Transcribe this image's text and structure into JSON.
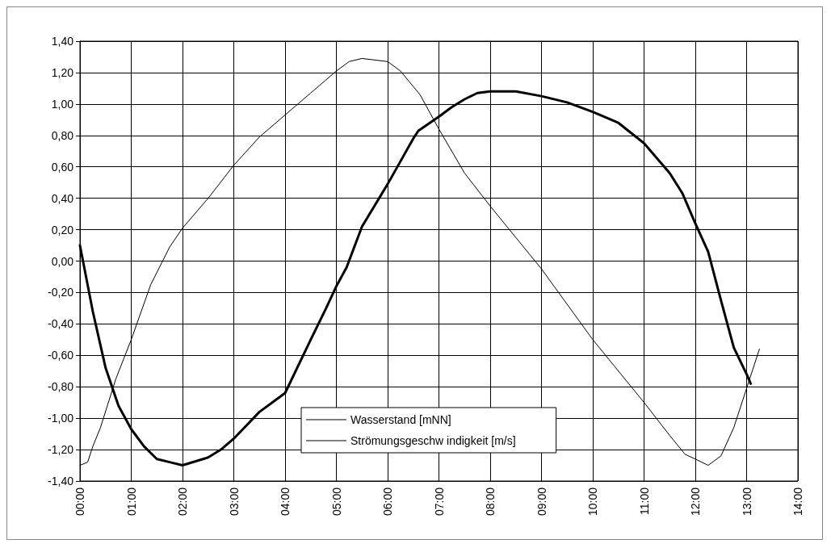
{
  "chart_data": {
    "type": "line",
    "xlim": [
      0,
      14
    ],
    "xticks": [
      {
        "value": 0,
        "label": "00:00"
      },
      {
        "value": 1,
        "label": "01:00"
      },
      {
        "value": 2,
        "label": "02:00"
      },
      {
        "value": 3,
        "label": "03:00"
      },
      {
        "value": 4,
        "label": "04:00"
      },
      {
        "value": 5,
        "label": "05:00"
      },
      {
        "value": 6,
        "label": "06:00"
      },
      {
        "value": 7,
        "label": "07:00"
      },
      {
        "value": 8,
        "label": "08:00"
      },
      {
        "value": 9,
        "label": "09:00"
      },
      {
        "value": 10,
        "label": "10:00"
      },
      {
        "value": 11,
        "label": "11:00"
      },
      {
        "value": 12,
        "label": "12:00"
      },
      {
        "value": 13,
        "label": "13:00"
      },
      {
        "value": 14,
        "label": "14:00"
      }
    ],
    "ylim": [
      -1.4,
      1.4
    ],
    "yticks": [
      {
        "value": -1.4,
        "label": "-1,40"
      },
      {
        "value": -1.2,
        "label": "-1,20"
      },
      {
        "value": -1.0,
        "label": "-1,00"
      },
      {
        "value": -0.8,
        "label": "-0,80"
      },
      {
        "value": -0.6,
        "label": "-0,60"
      },
      {
        "value": -0.4,
        "label": "-0,40"
      },
      {
        "value": -0.2,
        "label": "-0,20"
      },
      {
        "value": 0,
        "label": "0,00"
      },
      {
        "value": 0.2,
        "label": "0,20"
      },
      {
        "value": 0.4,
        "label": "0,40"
      },
      {
        "value": 0.6,
        "label": "0,60"
      },
      {
        "value": 0.8,
        "label": "0,80"
      },
      {
        "value": 1.0,
        "label": "1,00"
      },
      {
        "value": 1.2,
        "label": "1,20"
      },
      {
        "value": 1.4,
        "label": "1,40"
      }
    ],
    "grid": true,
    "legend": "bottom",
    "marker": "none",
    "line_style": "solid",
    "series": [
      {
        "name": "Wasserstand [mNN]",
        "color": "#000000",
        "x": [
          0,
          0.15,
          0.25,
          0.4,
          0.7,
          1.0,
          1.38,
          1.75,
          2.0,
          2.5,
          3.0,
          3.5,
          4.0,
          4.5,
          5.0,
          5.25,
          5.5,
          6.0,
          6.25,
          6.63,
          7.0,
          7.5,
          8.0,
          9.0,
          10.0,
          11.0,
          11.5,
          11.8,
          12.0,
          12.25,
          12.5,
          12.75,
          13.0,
          13.25
        ],
        "values": [
          -1.3,
          -1.28,
          -1.18,
          -1.06,
          -0.75,
          -0.5,
          -0.15,
          0.09,
          0.21,
          0.4,
          0.61,
          0.79,
          0.93,
          1.07,
          1.21,
          1.27,
          1.29,
          1.27,
          1.21,
          1.06,
          0.84,
          0.56,
          0.35,
          -0.05,
          -0.5,
          -0.9,
          -1.11,
          -1.23,
          -1.26,
          -1.3,
          -1.24,
          -1.06,
          -0.81,
          -0.56
        ]
      },
      {
        "name": "Strömungsgeschw indigkeit [m/s]",
        "color": "#000000",
        "x": [
          0,
          0.25,
          0.5,
          0.75,
          1.0,
          1.25,
          1.5,
          1.75,
          2.0,
          2.5,
          2.75,
          3.0,
          3.5,
          4.0,
          4.5,
          4.8,
          5.0,
          5.2,
          5.5,
          6.0,
          6.5,
          6.6,
          7.0,
          7.25,
          7.5,
          7.75,
          8.0,
          8.5,
          9.0,
          9.5,
          10.0,
          10.5,
          11.0,
          11.5,
          11.75,
          12.0,
          12.25,
          12.5,
          12.75,
          13.0,
          13.08
        ],
        "values": [
          0.1,
          -0.32,
          -0.68,
          -0.92,
          -1.07,
          -1.18,
          -1.26,
          -1.28,
          -1.3,
          -1.25,
          -1.2,
          -1.13,
          -0.96,
          -0.84,
          -0.5,
          -0.3,
          -0.16,
          -0.04,
          0.22,
          0.49,
          0.78,
          0.83,
          0.92,
          0.98,
          1.03,
          1.07,
          1.08,
          1.08,
          1.05,
          1.01,
          0.95,
          0.88,
          0.75,
          0.56,
          0.43,
          0.24,
          0.06,
          -0.25,
          -0.55,
          -0.72,
          -0.78
        ]
      }
    ]
  }
}
